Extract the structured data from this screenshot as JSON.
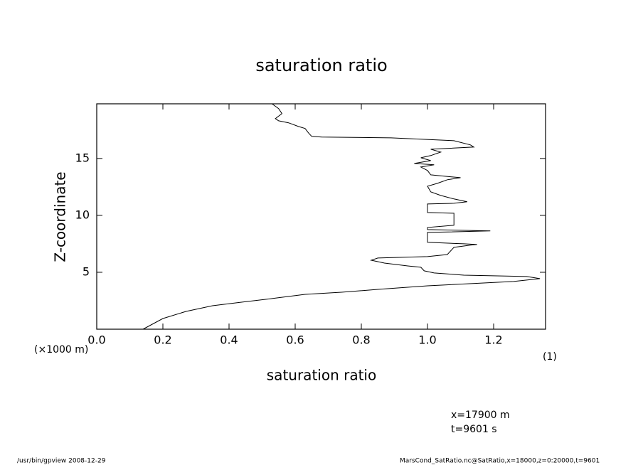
{
  "chart_data": {
    "type": "line",
    "title": "saturation ratio",
    "x_label": "saturation ratio",
    "y_label": "Z-coordinate",
    "y_unit": "(×1000 m)",
    "x_unit": "(1)",
    "annotations": [
      "x=17900 m",
      "t=9601 s"
    ],
    "footer_left": "/usr/bin/gpview  2008-12-29",
    "footer_right": "MarsCond_SatRatio.nc@SatRatio,x=18000,z=0:20000,t=9601",
    "xlim": [
      0,
      1.357
    ],
    "ylim": [
      0,
      19.8
    ],
    "xticks": [
      {
        "value": 0,
        "label": "0.0"
      },
      0.2,
      0.4,
      0.6,
      0.8,
      {
        "value": 1,
        "label": "1.0"
      },
      1.2
    ],
    "yticks": [
      5,
      10,
      15
    ],
    "color": "#000000",
    "x": [
      0.14,
      0.2,
      0.27,
      0.35,
      0.44,
      0.53,
      0.63,
      0.74,
      0.85,
      1.0,
      1.17,
      1.26,
      1.34,
      1.3,
      1.11,
      1.02,
      0.99,
      0.98,
      0.94,
      0.87,
      0.83,
      0.85,
      1.0,
      1.06,
      1.07,
      1.08,
      1.13,
      1.15,
      1.11,
      1.0,
      1.0,
      1.19,
      1.0,
      1.0,
      1.08,
      1.08,
      1.08,
      1.0,
      1.0,
      1.08,
      1.12,
      1.08,
      1.04,
      1.01,
      1.0,
      1.03,
      1.06,
      1.1,
      1.05,
      1.01,
      1.0,
      0.98,
      1.02,
      0.96,
      1.01,
      0.98,
      1.01,
      1.04,
      1.01,
      1.14,
      1.13,
      1.08,
      0.89,
      0.68,
      0.65,
      0.64,
      0.63,
      0.61,
      0.58,
      0.55,
      0.54,
      0.56,
      0.55,
      0.53
    ],
    "values": [
      0,
      0.94,
      1.56,
      2.06,
      2.38,
      2.69,
      3.06,
      3.25,
      3.5,
      3.81,
      4.06,
      4.19,
      4.44,
      4.63,
      4.75,
      4.94,
      5.13,
      5.44,
      5.56,
      5.81,
      6.06,
      6.25,
      6.38,
      6.56,
      6.88,
      7.19,
      7.38,
      7.44,
      7.5,
      7.63,
      8.5,
      8.63,
      8.75,
      8.94,
      9.13,
      9.88,
      10.19,
      10.25,
      11.0,
      11.06,
      11.19,
      11.44,
      11.75,
      12.06,
      12.56,
      12.81,
      13.13,
      13.31,
      13.44,
      13.56,
      13.94,
      14.25,
      14.44,
      14.56,
      14.81,
      15.06,
      15.25,
      15.56,
      15.81,
      16.0,
      16.19,
      16.56,
      16.81,
      16.88,
      16.94,
      17.25,
      17.63,
      17.81,
      18.13,
      18.31,
      18.5,
      18.94,
      19.38,
      19.8
    ]
  }
}
